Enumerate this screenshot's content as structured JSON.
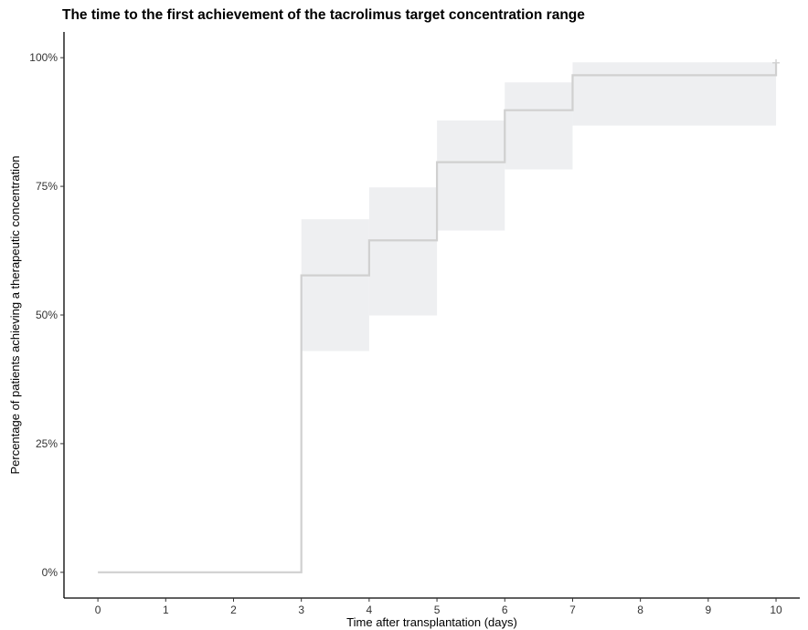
{
  "chart_data": {
    "type": "line",
    "subtype": "kaplan-meier-step",
    "title": "The time to the first achievement of the tacrolimus target concentration range",
    "xlabel": "Time after transplantation (days)",
    "ylabel": "Percentage of patients achieving a therapeutic concentration",
    "xlim": [
      -0.5,
      10.35
    ],
    "ylim": [
      -0.05,
      1.05
    ],
    "x_ticks": [
      0,
      1,
      2,
      3,
      4,
      5,
      6,
      7,
      8,
      9,
      10
    ],
    "x_tick_labels": [
      "0",
      "1",
      "2",
      "3",
      "4",
      "5",
      "6",
      "7",
      "8",
      "9",
      "10"
    ],
    "y_ticks": [
      0,
      0.25,
      0.5,
      0.75,
      1.0
    ],
    "y_tick_labels": [
      "0%",
      "25%",
      "50%",
      "75%",
      "100%"
    ],
    "grid": false,
    "legend": "none",
    "series": [
      {
        "x": [
          0,
          3,
          4,
          5,
          6,
          7,
          10
        ],
        "y": [
          0.0,
          0.577,
          0.645,
          0.797,
          0.898,
          0.966,
          0.99
        ],
        "ci_lower": [
          null,
          0.43,
          0.499,
          0.664,
          0.783,
          0.868,
          null
        ],
        "ci_upper": [
          null,
          0.686,
          0.748,
          0.878,
          0.952,
          0.991,
          null
        ],
        "censor_x": [
          10
        ],
        "censor_y": [
          0.99
        ]
      }
    ],
    "colors": {
      "line": "#d0d0d0",
      "ci_band": "#eeeff1",
      "axis": "#000000"
    }
  }
}
